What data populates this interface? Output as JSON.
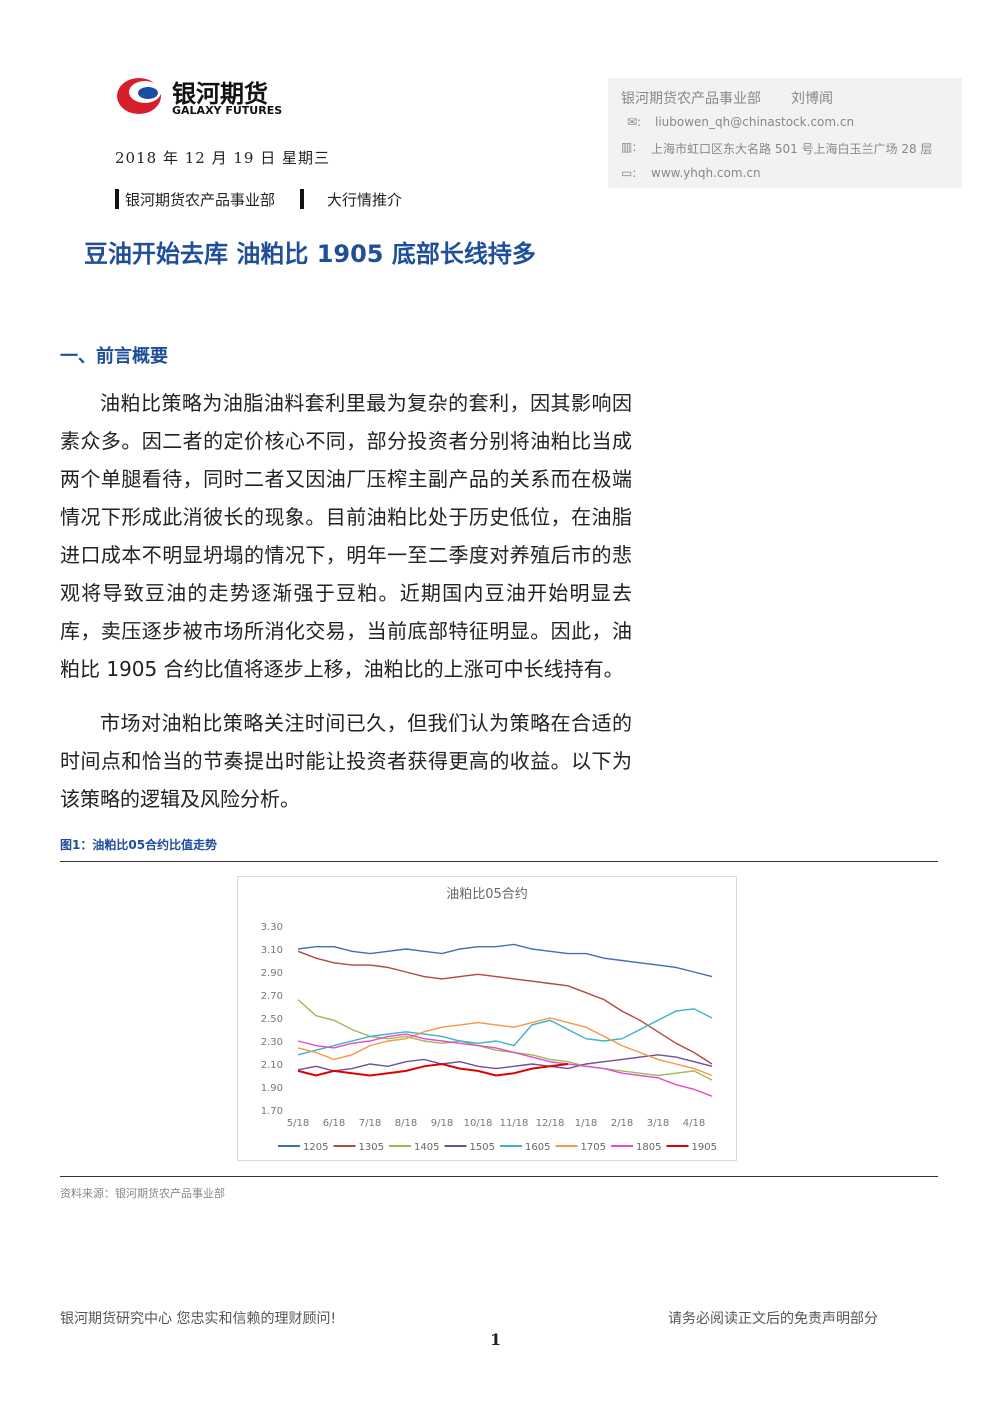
{
  "header": {
    "logo_cn": "银河期货",
    "logo_en": "GALAXY FUTURES",
    "date": "2018 年 12 月 19 日 星期三",
    "dept": "银河期货农产品事业部",
    "column": "大行情推介"
  },
  "contact": {
    "dept": "银河期货农产品事业部",
    "author": "刘博闻",
    "email": "liubowen_qh@chinastock.com.cn",
    "address": "上海市虹口区东大名路 501 号上海白玉兰广场 28 层",
    "web": "www.yhqh.com.cn"
  },
  "title": "豆油开始去库 油粕比 1905 底部长线持多",
  "section": "一、前言概要",
  "paragraphs": [
    "油粕比策略为油脂油料套利里最为复杂的套利，因其影响因素众多。因二者的定价核心不同，部分投资者分别将油粕比当成两个单腿看待，同时二者又因油厂压榨主副产品的关系而在极端情况下形成此消彼长的现象。目前油粕比处于历史低位，在油脂进口成本不明显坍塌的情况下，明年一至二季度对养殖后市的悲观将导致豆油的走势逐渐强于豆粕。近期国内豆油开始明显去库，卖压逐步被市场所消化交易，当前底部特征明显。因此，油粕比 1905 合约比值将逐步上移，油粕比的上涨可中长线持有。",
    "市场对油粕比策略关注时间已久，但我们认为策略在合适的时间点和恰当的节奏提出时能让投资者获得更高的收益。以下为该策略的逻辑及风险分析。"
  ],
  "figure_caption": "图1：油粕比05合约比值走势",
  "source": "资料来源：银河期货农产品事业部",
  "footer": {
    "left": "银河期货研究中心  您忠实和信赖的理财顾问!",
    "right": "请务必阅读正文后的免责声明部分",
    "page": "1"
  },
  "chart_data": {
    "type": "line",
    "title": "油粕比05合约",
    "categories": [
      "5/18",
      null,
      "6/18",
      null,
      "7/18",
      null,
      "8/18",
      null,
      "9/18",
      null,
      "10/18",
      null,
      "11/18",
      null,
      "12/18",
      null,
      "1/18",
      null,
      "2/18",
      null,
      "3/18",
      null,
      "4/18",
      null
    ],
    "ylim": [
      1.7,
      3.3
    ],
    "yticks": [
      {
        "value": 1.7,
        "label": "1.70"
      },
      {
        "value": 1.9,
        "label": "1.90"
      },
      {
        "value": 2.1,
        "label": "2.10"
      },
      {
        "value": 2.3,
        "label": "2.30"
      },
      {
        "value": 2.5,
        "label": "2.50"
      },
      {
        "value": 2.7,
        "label": "2.70"
      },
      {
        "value": 2.9,
        "label": "2.90"
      },
      {
        "value": 3.1,
        "label": "3.10"
      },
      {
        "value": 3.3,
        "label": "3.30"
      }
    ],
    "legend": "bottom",
    "series": [
      {
        "name": "1205",
        "color": "#3f6fb4",
        "values": [
          3.1,
          3.12,
          3.12,
          3.08,
          3.06,
          3.08,
          3.1,
          3.08,
          3.06,
          3.1,
          3.12,
          3.12,
          3.14,
          3.1,
          3.08,
          3.06,
          3.06,
          3.02,
          3.0,
          2.98,
          2.96,
          2.94,
          2.9,
          2.86
        ]
      },
      {
        "name": "1305",
        "color": "#b5473f",
        "values": [
          3.08,
          3.02,
          2.98,
          2.96,
          2.96,
          2.94,
          2.9,
          2.86,
          2.84,
          2.86,
          2.88,
          2.86,
          2.84,
          2.82,
          2.8,
          2.78,
          2.72,
          2.66,
          2.56,
          2.48,
          2.38,
          2.28,
          2.2,
          2.1
        ]
      },
      {
        "name": "1405",
        "color": "#9bbb59",
        "values": [
          2.66,
          2.52,
          2.48,
          2.4,
          2.34,
          2.32,
          2.34,
          2.3,
          2.28,
          2.3,
          2.26,
          2.22,
          2.2,
          2.18,
          2.14,
          2.12,
          2.08,
          2.06,
          2.04,
          2.02,
          2.0,
          2.02,
          2.04,
          1.96
        ]
      },
      {
        "name": "1505",
        "color": "#6f4e9a",
        "values": [
          2.05,
          2.08,
          2.04,
          2.06,
          2.1,
          2.08,
          2.12,
          2.14,
          2.1,
          2.12,
          2.08,
          2.06,
          2.08,
          2.1,
          2.08,
          2.06,
          2.1,
          2.12,
          2.14,
          2.16,
          2.18,
          2.16,
          2.12,
          2.08
        ]
      },
      {
        "name": "1605",
        "color": "#3bb3c8",
        "values": [
          2.18,
          2.22,
          2.26,
          2.3,
          2.34,
          2.36,
          2.38,
          2.36,
          2.34,
          2.3,
          2.28,
          2.3,
          2.26,
          2.44,
          2.48,
          2.4,
          2.32,
          2.3,
          2.32,
          2.4,
          2.48,
          2.56,
          2.58,
          2.5
        ]
      },
      {
        "name": "1705",
        "color": "#f79646",
        "values": [
          2.24,
          2.2,
          2.14,
          2.18,
          2.26,
          2.3,
          2.32,
          2.38,
          2.42,
          2.44,
          2.46,
          2.44,
          2.42,
          2.46,
          2.5,
          2.46,
          2.42,
          2.34,
          2.26,
          2.2,
          2.14,
          2.1,
          2.06,
          2.0
        ]
      },
      {
        "name": "1805",
        "color": "#e84bc8",
        "values": [
          2.3,
          2.26,
          2.24,
          2.28,
          2.3,
          2.34,
          2.36,
          2.32,
          2.3,
          2.28,
          2.26,
          2.24,
          2.2,
          2.16,
          2.12,
          2.1,
          2.08,
          2.06,
          2.02,
          2.0,
          1.98,
          1.92,
          1.88,
          1.82
        ]
      },
      {
        "name": "1905",
        "color": "#e00000",
        "values": [
          2.04,
          2.0,
          2.04,
          2.02,
          2.0,
          2.02,
          2.04,
          2.08,
          2.1,
          2.06,
          2.04,
          2.0,
          2.02,
          2.06,
          2.08,
          2.1,
          null,
          null,
          null,
          null,
          null,
          null,
          null,
          null
        ]
      }
    ]
  }
}
